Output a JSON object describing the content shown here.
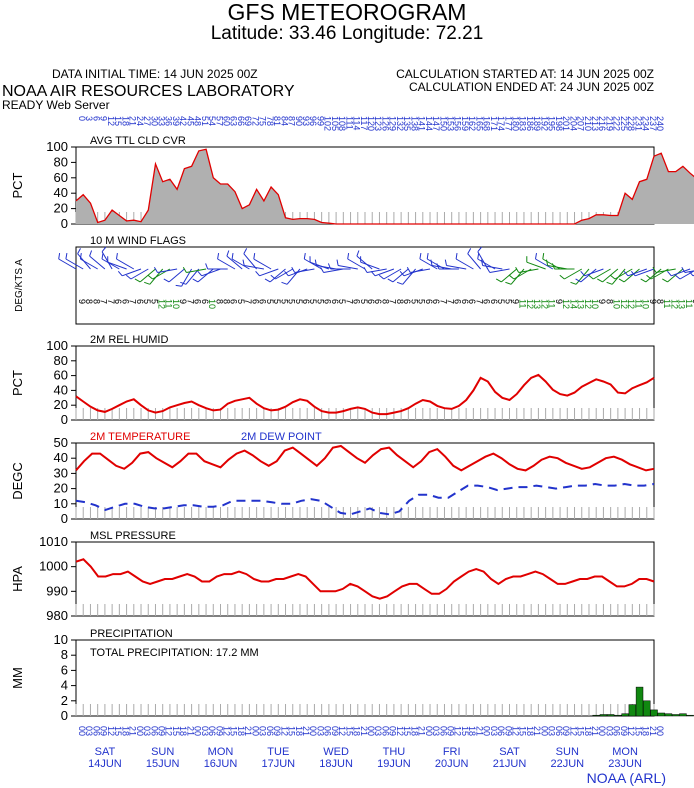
{
  "header": {
    "title": "GFS METEOROGRAM",
    "subtitle": "Latitude: 33.46 Longitude:  72.21",
    "initial_time": "DATA INITIAL TIME: 14 JUN 2025 00Z",
    "calc_started": "CALCULATION STARTED AT: 14 JUN 2025 00Z",
    "calc_ended": "CALCULATION ENDED AT: 24 JUN 2025 00Z",
    "lab": "NOAA AIR RESOURCES LABORATORY",
    "server": "READY Web Server",
    "footer": "NOAA (ARL)"
  },
  "time_axis": {
    "hours": [
      "00",
      "03",
      "06",
      "09",
      "12",
      "15",
      "18",
      "21"
    ],
    "days": [
      {
        "dow": "SAT",
        "date": "14JUN"
      },
      {
        "dow": "SUN",
        "date": "15JUN"
      },
      {
        "dow": "MON",
        "date": "16JUN"
      },
      {
        "dow": "TUE",
        "date": "17JUN"
      },
      {
        "dow": "WED",
        "date": "18JUN"
      },
      {
        "dow": "THU",
        "date": "19JUN"
      },
      {
        "dow": "FRI",
        "date": "20JUN"
      },
      {
        "dow": "SAT",
        "date": "21JUN"
      },
      {
        "dow": "SUN",
        "date": "22JUN"
      },
      {
        "dow": "MON",
        "date": "23JUN"
      }
    ],
    "top_label_first": "0",
    "top_label_last": "240",
    "top_label_step": 3
  },
  "colors": {
    "text": "#000000",
    "blue": "#2233cc",
    "red": "#e00000",
    "green": "#118811",
    "cloud": "#b0b0b0"
  },
  "chart_data": [
    {
      "type": "area",
      "title": "AVG TTL CLD CVR",
      "ylabel": "PCT",
      "ylim": [
        0,
        100
      ],
      "yticks": [
        0,
        20,
        40,
        60,
        80,
        100
      ],
      "x_hours_step": 3,
      "values": [
        30,
        38,
        27,
        2,
        5,
        18,
        11,
        4,
        5,
        3,
        18,
        78,
        55,
        58,
        45,
        72,
        75,
        95,
        97,
        60,
        52,
        52,
        42,
        20,
        25,
        45,
        30,
        48,
        38,
        8,
        6,
        7,
        7,
        6,
        2,
        1,
        0,
        0,
        0,
        0,
        0,
        0,
        0,
        0,
        0,
        0,
        0,
        0,
        0,
        0,
        0,
        0,
        0,
        0,
        0,
        0,
        0,
        0,
        0,
        0,
        0,
        0,
        0,
        0,
        0,
        0,
        0,
        0,
        0,
        0,
        5,
        7,
        12,
        12,
        11,
        11,
        40,
        32,
        55,
        58,
        88,
        92,
        68,
        68,
        75,
        66,
        58,
        70,
        90,
        82,
        35,
        38,
        62,
        65,
        68,
        55,
        82,
        88
      ]
    },
    {
      "type": "table",
      "title": "10 M  WIND FLAGS",
      "ylabel": "DEG/KTS  A",
      "x_hours_step": 3,
      "dirs": [
        300,
        300,
        320,
        300,
        310,
        330,
        300,
        290,
        300,
        250,
        240,
        230,
        220,
        240,
        260,
        230,
        210,
        220,
        260,
        230,
        250,
        270,
        300,
        310,
        300,
        320,
        280,
        300,
        250,
        230,
        240,
        220,
        250,
        260,
        300,
        290,
        280,
        260,
        270,
        280,
        300,
        310,
        290,
        260,
        250,
        240,
        230,
        220,
        250,
        260,
        300,
        300,
        280,
        270,
        280,
        300,
        320,
        330,
        300,
        280,
        260,
        230,
        220,
        240,
        260,
        290,
        300,
        300,
        280,
        270,
        240,
        220,
        230,
        250,
        240,
        230,
        220,
        240,
        230,
        250,
        250,
        230,
        240,
        260,
        230,
        250,
        240,
        260,
        250,
        240,
        250,
        260,
        250,
        240,
        250,
        260,
        240,
        250
      ],
      "speeds": [
        9,
        8,
        8,
        7,
        7,
        6,
        6,
        7,
        6,
        5,
        5,
        12,
        11,
        10,
        9,
        7,
        6,
        6,
        10,
        8,
        8,
        6,
        5,
        7,
        6,
        6,
        5,
        5,
        5,
        5,
        5,
        6,
        5,
        5,
        6,
        6,
        5,
        7,
        6,
        5,
        6,
        6,
        8,
        7,
        8,
        6,
        5,
        5,
        6,
        6,
        7,
        7,
        6,
        6,
        6,
        7,
        6,
        6,
        5,
        5,
        9,
        11,
        12,
        13,
        12,
        11,
        9,
        12,
        14,
        13,
        12,
        10,
        9,
        8,
        10,
        12,
        12,
        11,
        10,
        9,
        8,
        11,
        12,
        13,
        11,
        9,
        8,
        8,
        9,
        10,
        11,
        12,
        10,
        11,
        9,
        8,
        10,
        8
      ]
    },
    {
      "type": "line",
      "title": "2M REL HUMID",
      "ylabel": "PCT",
      "ylim": [
        0,
        100
      ],
      "yticks": [
        0,
        20,
        40,
        60,
        80,
        100
      ],
      "x_hours_step": 3,
      "values": [
        32,
        25,
        18,
        13,
        11,
        15,
        20,
        25,
        28,
        20,
        13,
        10,
        12,
        17,
        20,
        23,
        25,
        20,
        16,
        13,
        14,
        22,
        26,
        28,
        30,
        22,
        16,
        13,
        14,
        18,
        24,
        28,
        26,
        18,
        12,
        10,
        10,
        12,
        15,
        17,
        15,
        10,
        8,
        8,
        10,
        12,
        16,
        22,
        27,
        25,
        19,
        16,
        15,
        19,
        27,
        40,
        57,
        52,
        38,
        30,
        27,
        35,
        47,
        57,
        61,
        52,
        41,
        35,
        33,
        37,
        45,
        50,
        55,
        52,
        48,
        37,
        36,
        43,
        47,
        51,
        57
      ]
    },
    {
      "type": "line",
      "title": "2M TEMPERATURE",
      "ylabel": "DEGC",
      "ylim": [
        0,
        50
      ],
      "yticks": [
        0,
        10,
        20,
        30,
        40,
        50
      ],
      "x_hours_step": 3,
      "series": [
        {
          "name": "2M TEMPERATURE",
          "values": [
            32,
            38,
            43,
            43,
            39,
            35,
            33,
            37,
            43,
            44,
            40,
            37,
            34,
            38,
            43,
            43,
            38,
            36,
            34,
            39,
            43,
            45,
            42,
            38,
            35,
            38,
            45,
            47,
            43,
            39,
            35,
            40,
            47,
            48,
            44,
            40,
            37,
            42,
            46,
            47,
            42,
            38,
            34,
            38,
            44,
            46,
            41,
            35,
            32,
            35,
            38,
            41,
            43,
            40,
            36,
            33,
            32,
            35,
            39,
            41,
            40,
            37,
            35,
            33,
            34,
            37,
            40,
            41,
            39,
            36,
            34,
            32,
            33
          ]
        },
        {
          "name": "2M  DEW POINT",
          "values": [
            12,
            11,
            9,
            6,
            8,
            10,
            10,
            8,
            7,
            7,
            8,
            9,
            9,
            8,
            8,
            9,
            12,
            12,
            12,
            12,
            11,
            10,
            10,
            12,
            13,
            12,
            8,
            4,
            3,
            5,
            7,
            4,
            3,
            5,
            12,
            16,
            16,
            14,
            14,
            18,
            22,
            22,
            21,
            19,
            20,
            21,
            21,
            22,
            21,
            20,
            21,
            22,
            22,
            23,
            22,
            22,
            23,
            22,
            22,
            23
          ]
        }
      ]
    },
    {
      "type": "line",
      "title": "MSL PRESSURE",
      "ylabel": "HPA",
      "ylim": [
        980,
        1010
      ],
      "yticks": [
        980,
        990,
        1000,
        1010
      ],
      "x_hours_step": 3,
      "values": [
        1002,
        1003,
        1000,
        996,
        996,
        997,
        997,
        998,
        996,
        994,
        993,
        994,
        995,
        995,
        996,
        997,
        996,
        994,
        994,
        996,
        997,
        997,
        998,
        997,
        995,
        994,
        994,
        995,
        995,
        996,
        997,
        996,
        993,
        990,
        990,
        990,
        991,
        993,
        992,
        990,
        988,
        987,
        988,
        990,
        992,
        993,
        993,
        991,
        989,
        989,
        991,
        994,
        996,
        998,
        999,
        998,
        995,
        993,
        995,
        996,
        996,
        997,
        998,
        997,
        995,
        993,
        993,
        994,
        995,
        995,
        996,
        996,
        994,
        992,
        992,
        993,
        995,
        995,
        994
      ]
    },
    {
      "type": "bar",
      "title": "PRECIPITATION",
      "ylabel": "MM",
      "ylim": [
        0,
        10
      ],
      "yticks": [
        0,
        2,
        4,
        6,
        8,
        10
      ],
      "x_hours_step": 3,
      "annotation": "TOTAL PRECIPITATION:  17.2 MM",
      "values": [
        0,
        0,
        0,
        0,
        0,
        0,
        0,
        0,
        0,
        0,
        0,
        0,
        0,
        0,
        0,
        0,
        0,
        0,
        0,
        0,
        0,
        0,
        0,
        0,
        0,
        0,
        0,
        0,
        0,
        0,
        0,
        0,
        0,
        0,
        0,
        0,
        0,
        0,
        0,
        0,
        0,
        0,
        0,
        0,
        0,
        0,
        0,
        0,
        0,
        0,
        0,
        0,
        0,
        0,
        0,
        0,
        0,
        0,
        0,
        0,
        0,
        0,
        0,
        0,
        0,
        0,
        0,
        0,
        0,
        0,
        0,
        0,
        0.1,
        0.2,
        0.2,
        0.1,
        0.3,
        1.5,
        3.8,
        2.0,
        0.8,
        0.4,
        0.3,
        0.2,
        0.3,
        0.1,
        0.0,
        0.2,
        0.8,
        1.1,
        1.8,
        1.7,
        1.5,
        0.6,
        0.2,
        0.0,
        0.2,
        0.6,
        1.2
      ]
    }
  ]
}
